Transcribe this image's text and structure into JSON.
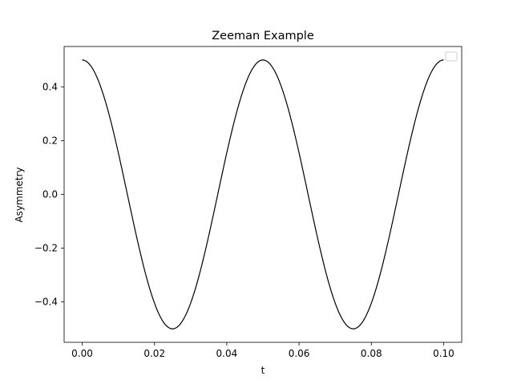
{
  "chart_data": {
    "type": "line",
    "title": "Zeeman Example",
    "xlabel": "t",
    "ylabel": "Asymmetry",
    "xlim": [
      -0.005,
      0.105
    ],
    "ylim": [
      -0.55,
      0.55
    ],
    "x_ticks": [
      0.0,
      0.02,
      0.04,
      0.06,
      0.08,
      0.1
    ],
    "x_tick_labels": [
      "0.00",
      "0.02",
      "0.04",
      "0.06",
      "0.08",
      "0.10"
    ],
    "y_ticks": [
      -0.4,
      -0.2,
      0.0,
      0.2,
      0.4
    ],
    "y_tick_labels": [
      "−0.4",
      "−0.2",
      "0.0",
      "0.2",
      "0.4"
    ],
    "grid": false,
    "legend": {
      "placement": "top-right",
      "entries": []
    },
    "series": [
      {
        "color": "#000000",
        "x_start": 0.0,
        "x_end": 0.1,
        "x_step": 0.0005,
        "function": "0.5 * cos(2 * pi * 20 * t)",
        "amplitude": 0.5,
        "frequency": 20,
        "x": [
          0.0,
          0.0125,
          0.025,
          0.0375,
          0.05,
          0.0625,
          0.075,
          0.0875,
          0.1
        ],
        "y": [
          0.5,
          0.0,
          -0.5,
          0.0,
          0.5,
          0.0,
          -0.5,
          0.0,
          0.5
        ]
      }
    ]
  }
}
